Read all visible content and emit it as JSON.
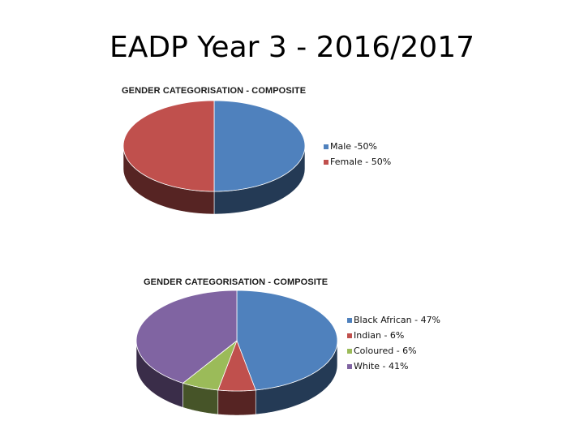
{
  "slide": {
    "title": "EADP Year 3 - 2016/2017"
  },
  "chart_data": [
    {
      "type": "pie",
      "title": "GENDER CATEGORISATION - COMPOSITE",
      "categories": [
        "Male -50%",
        "Female - 50%"
      ],
      "values": [
        50,
        50
      ],
      "colors": [
        "#4f81bd",
        "#c0504d"
      ],
      "legend_position": "right",
      "style": "3d"
    },
    {
      "type": "pie",
      "title": "GENDER CATEGORISATION - COMPOSITE",
      "categories": [
        "Black African - 47%",
        "Indian - 6%",
        "Coloured - 6%",
        "White - 41%"
      ],
      "values": [
        47,
        6,
        6,
        41
      ],
      "colors": [
        "#4f81bd",
        "#c0504d",
        "#9bbb59",
        "#8064a2"
      ],
      "legend_position": "right",
      "style": "3d"
    }
  ]
}
